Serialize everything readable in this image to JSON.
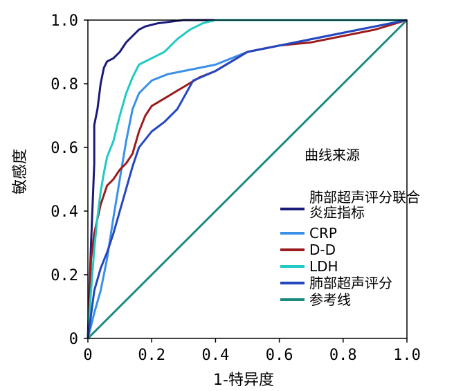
{
  "chart_data": {
    "type": "line",
    "title": "",
    "xlabel": "1-特异度",
    "ylabel": "敏感度",
    "xlim": [
      0,
      1
    ],
    "ylim": [
      0,
      1
    ],
    "x_ticks": [
      "0",
      "0.2",
      "0.4",
      "0.6",
      "0.8",
      "1.0"
    ],
    "y_ticks": [
      "0",
      "0.2",
      "0.4",
      "0.6",
      "0.8",
      "1.0"
    ],
    "grid": false,
    "legend": {
      "title": "曲线来源",
      "position": "right"
    },
    "series": [
      {
        "name_lines": [
          "肺部超声评分联合",
          "炎症指标"
        ],
        "color": "#1a1a7a",
        "points": [
          [
            0,
            0
          ],
          [
            0.01,
            0.3
          ],
          [
            0.02,
            0.55
          ],
          [
            0.02,
            0.67
          ],
          [
            0.03,
            0.72
          ],
          [
            0.04,
            0.8
          ],
          [
            0.05,
            0.85
          ],
          [
            0.06,
            0.87
          ],
          [
            0.08,
            0.88
          ],
          [
            0.1,
            0.9
          ],
          [
            0.12,
            0.93
          ],
          [
            0.14,
            0.95
          ],
          [
            0.16,
            0.97
          ],
          [
            0.18,
            0.98
          ],
          [
            0.22,
            0.99
          ],
          [
            0.3,
            1.0
          ],
          [
            1.0,
            1.0
          ]
        ]
      },
      {
        "name_lines": [
          "CRP"
        ],
        "color": "#3a8fe8",
        "points": [
          [
            0,
            0
          ],
          [
            0.02,
            0.08
          ],
          [
            0.04,
            0.15
          ],
          [
            0.06,
            0.25
          ],
          [
            0.08,
            0.38
          ],
          [
            0.1,
            0.5
          ],
          [
            0.12,
            0.62
          ],
          [
            0.14,
            0.72
          ],
          [
            0.16,
            0.77
          ],
          [
            0.2,
            0.81
          ],
          [
            0.25,
            0.83
          ],
          [
            0.3,
            0.84
          ],
          [
            0.35,
            0.85
          ],
          [
            0.4,
            0.86
          ],
          [
            0.45,
            0.88
          ],
          [
            0.5,
            0.9
          ],
          [
            0.55,
            0.91
          ],
          [
            0.6,
            0.92
          ],
          [
            0.7,
            0.94
          ],
          [
            0.8,
            0.96
          ],
          [
            0.9,
            0.98
          ],
          [
            1.0,
            1.0
          ]
        ]
      },
      {
        "name_lines": [
          "D-D"
        ],
        "color": "#9b1c1c",
        "points": [
          [
            0,
            0
          ],
          [
            0.01,
            0.25
          ],
          [
            0.02,
            0.33
          ],
          [
            0.04,
            0.42
          ],
          [
            0.06,
            0.48
          ],
          [
            0.08,
            0.5
          ],
          [
            0.1,
            0.53
          ],
          [
            0.12,
            0.55
          ],
          [
            0.14,
            0.58
          ],
          [
            0.16,
            0.65
          ],
          [
            0.18,
            0.7
          ],
          [
            0.2,
            0.73
          ],
          [
            0.25,
            0.76
          ],
          [
            0.3,
            0.79
          ],
          [
            0.35,
            0.82
          ],
          [
            0.4,
            0.84
          ],
          [
            0.45,
            0.87
          ],
          [
            0.5,
            0.9
          ],
          [
            0.6,
            0.92
          ],
          [
            0.7,
            0.93
          ],
          [
            0.8,
            0.95
          ],
          [
            0.9,
            0.97
          ],
          [
            1.0,
            1.0
          ]
        ]
      },
      {
        "name_lines": [
          "LDH"
        ],
        "color": "#22c9c4",
        "points": [
          [
            0,
            0
          ],
          [
            0.01,
            0.15
          ],
          [
            0.02,
            0.28
          ],
          [
            0.03,
            0.38
          ],
          [
            0.04,
            0.46
          ],
          [
            0.05,
            0.52
          ],
          [
            0.06,
            0.57
          ],
          [
            0.08,
            0.62
          ],
          [
            0.1,
            0.7
          ],
          [
            0.12,
            0.77
          ],
          [
            0.14,
            0.82
          ],
          [
            0.16,
            0.86
          ],
          [
            0.2,
            0.88
          ],
          [
            0.24,
            0.9
          ],
          [
            0.28,
            0.94
          ],
          [
            0.32,
            0.97
          ],
          [
            0.36,
            0.99
          ],
          [
            0.4,
            1.0
          ],
          [
            1.0,
            1.0
          ]
        ]
      },
      {
        "name_lines": [
          "肺部超声评分"
        ],
        "color": "#2446c0",
        "points": [
          [
            0,
            0
          ],
          [
            0.02,
            0.15
          ],
          [
            0.04,
            0.22
          ],
          [
            0.06,
            0.27
          ],
          [
            0.08,
            0.33
          ],
          [
            0.1,
            0.4
          ],
          [
            0.12,
            0.47
          ],
          [
            0.14,
            0.54
          ],
          [
            0.16,
            0.6
          ],
          [
            0.2,
            0.65
          ],
          [
            0.24,
            0.68
          ],
          [
            0.28,
            0.72
          ],
          [
            0.33,
            0.81
          ],
          [
            0.4,
            0.84
          ],
          [
            0.45,
            0.87
          ],
          [
            0.5,
            0.9
          ],
          [
            0.6,
            0.92
          ],
          [
            0.7,
            0.94
          ],
          [
            0.8,
            0.96
          ],
          [
            0.9,
            0.98
          ],
          [
            1.0,
            1.0
          ]
        ]
      },
      {
        "name_lines": [
          "参考线"
        ],
        "color": "#1c8a7e",
        "points": [
          [
            0,
            0
          ],
          [
            1,
            1
          ]
        ]
      }
    ]
  }
}
